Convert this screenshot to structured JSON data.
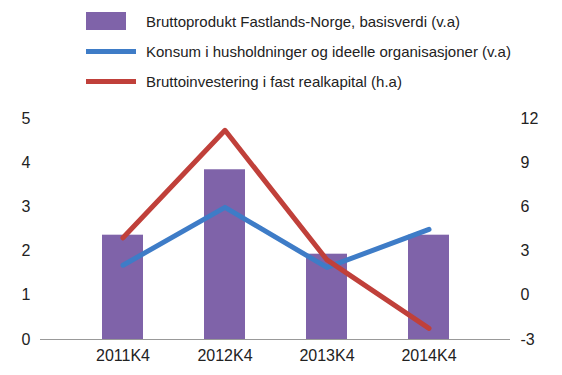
{
  "chart_data": {
    "type": "bar",
    "categories": [
      "2011K4",
      "2012K4",
      "2013K4",
      "2014K4"
    ],
    "series": [
      {
        "name": "Bruttoprodukt Fastlands-Norge, basisverdi (v.a)",
        "type": "bar",
        "color": "#7f63a9",
        "values": [
          2.36,
          3.84,
          1.93,
          2.36
        ]
      },
      {
        "name": "Konsum i husholdninger og ideelle organisasjoner (v.a)",
        "type": "line",
        "color": "#3e7cc7",
        "values": [
          1.68,
          2.99,
          1.63,
          2.49
        ]
      },
      {
        "name": "Bruttoinvestering i fast realkapital (h.a)",
        "type": "line",
        "axis": "y2",
        "color": "#c0403a",
        "values": [
          3.9,
          11.2,
          2.4,
          -2.25
        ]
      }
    ],
    "ylim": [
      0,
      5
    ],
    "yticks": [
      0,
      1,
      2,
      3,
      4,
      5
    ],
    "y2lim": [
      -3,
      12
    ],
    "y2ticks": [
      -3,
      0,
      3,
      6,
      9,
      12
    ],
    "legend": "top"
  }
}
